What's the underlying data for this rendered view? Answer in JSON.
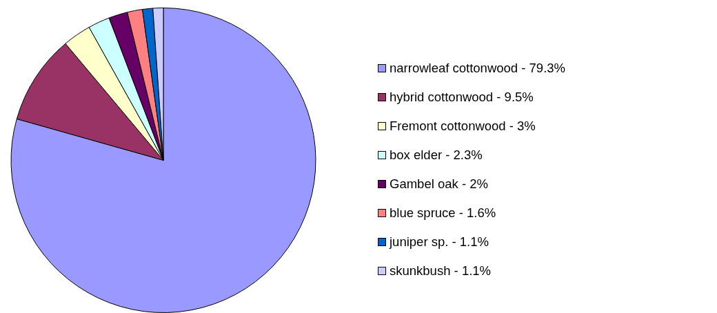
{
  "chart_data": {
    "type": "pie",
    "categories": [
      "narrowleaf cottonwood - 79.3%",
      "hybrid cottonwood - 9.5%",
      "Fremont cottonwood - 3%",
      "box elder - 2.3%",
      "Gambel oak - 2%",
      "blue spruce - 1.6%",
      "juniper sp. - 1.1%",
      "skunkbush - 1.1%"
    ],
    "values": [
      79.3,
      9.5,
      3,
      2.3,
      2,
      1.6,
      1.1,
      1.1
    ],
    "colors": [
      "#9999ff",
      "#993366",
      "#ffffcc",
      "#ccffff",
      "#660066",
      "#ff8080",
      "#0066cc",
      "#ccccff"
    ],
    "legend": "right"
  }
}
